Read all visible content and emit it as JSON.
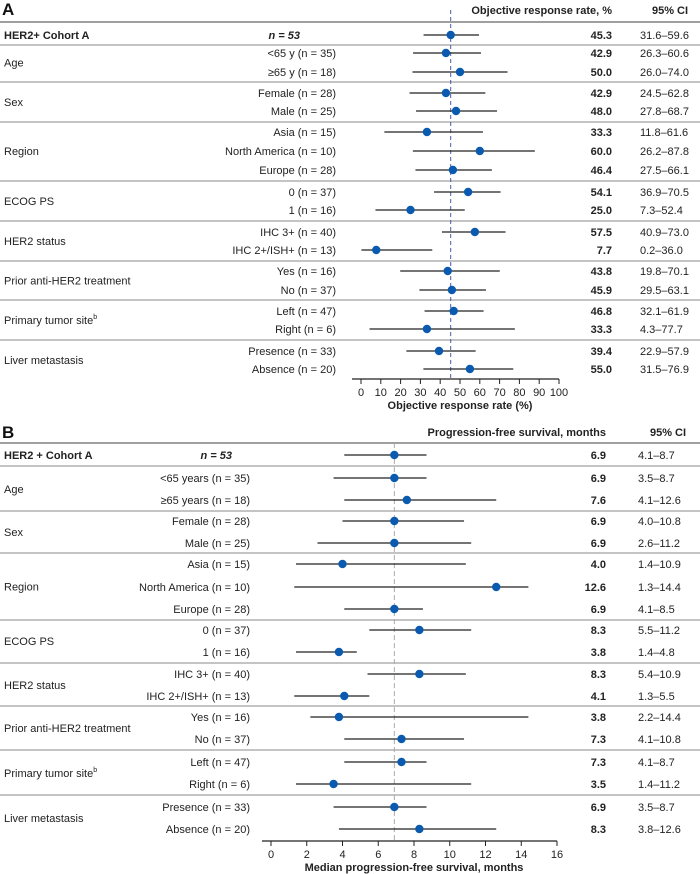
{
  "chart_data": [
    {
      "type": "forest",
      "panel_label": "A",
      "estimate_header": "Objective response rate, %",
      "ci_header": "95% CI",
      "xlabel": "Objective response rate (%)",
      "xlim": [
        0,
        100
      ],
      "xticks": [
        "0",
        "10",
        "20",
        "30",
        "40",
        "50",
        "60",
        "70",
        "80",
        "90",
        "100"
      ],
      "reference_line": 45.3,
      "overall": {
        "label": "HER2+ Cohort A",
        "n_label": "n = 53",
        "value": 45.3,
        "lo": 31.6,
        "hi": 59.6,
        "value_text": "45.3",
        "ci_text": "31.6–59.6"
      },
      "groups": [
        {
          "label": "Age",
          "sup": "",
          "rows": [
            {
              "label": "<65 y (n = 35)",
              "value": 42.9,
              "lo": 26.3,
              "hi": 60.6,
              "value_text": "42.9",
              "ci_text": "26.3–60.6"
            },
            {
              "label": "≥65 y (n = 18)",
              "value": 50.0,
              "lo": 26.0,
              "hi": 74.0,
              "value_text": "50.0",
              "ci_text": "26.0–74.0"
            }
          ]
        },
        {
          "label": "Sex",
          "sup": "",
          "rows": [
            {
              "label": "Female (n = 28)",
              "value": 42.9,
              "lo": 24.5,
              "hi": 62.8,
              "value_text": "42.9",
              "ci_text": "24.5–62.8"
            },
            {
              "label": "Male (n = 25)",
              "value": 48.0,
              "lo": 27.8,
              "hi": 68.7,
              "value_text": "48.0",
              "ci_text": "27.8–68.7"
            }
          ]
        },
        {
          "label": "Region",
          "sup": "",
          "rows": [
            {
              "label": "Asia (n = 15)",
              "value": 33.3,
              "lo": 11.8,
              "hi": 61.6,
              "value_text": "33.3",
              "ci_text": "11.8–61.6"
            },
            {
              "label": "North America (n = 10)",
              "value": 60.0,
              "lo": 26.2,
              "hi": 87.8,
              "value_text": "60.0",
              "ci_text": "26.2–87.8"
            },
            {
              "label": "Europe (n = 28)",
              "value": 46.4,
              "lo": 27.5,
              "hi": 66.1,
              "value_text": "46.4",
              "ci_text": "27.5–66.1"
            }
          ]
        },
        {
          "label": "ECOG PS",
          "sup": "",
          "rows": [
            {
              "label": "0 (n = 37)",
              "value": 54.1,
              "lo": 36.9,
              "hi": 70.5,
              "value_text": "54.1",
              "ci_text": "36.9–70.5"
            },
            {
              "label": "1 (n = 16)",
              "value": 25.0,
              "lo": 7.3,
              "hi": 52.4,
              "value_text": "25.0",
              "ci_text": "7.3–52.4"
            }
          ]
        },
        {
          "label": "HER2 status",
          "sup": "",
          "rows": [
            {
              "label": "IHC 3+ (n = 40)",
              "value": 57.5,
              "lo": 40.9,
              "hi": 73.0,
              "value_text": "57.5",
              "ci_text": "40.9–73.0"
            },
            {
              "label": "IHC 2+/ISH+ (n = 13)",
              "value": 7.7,
              "lo": 0.2,
              "hi": 36.0,
              "value_text": "7.7",
              "ci_text": "0.2–36.0"
            }
          ]
        },
        {
          "label": "Prior anti-HER2 treatment",
          "sup": "",
          "rows": [
            {
              "label": "Yes (n = 16)",
              "value": 43.8,
              "lo": 19.8,
              "hi": 70.1,
              "value_text": "43.8",
              "ci_text": "19.8–70.1"
            },
            {
              "label": "No (n = 37)",
              "value": 45.9,
              "lo": 29.5,
              "hi": 63.1,
              "value_text": "45.9",
              "ci_text": "29.5–63.1"
            }
          ]
        },
        {
          "label": "Primary tumor site",
          "sup": "b",
          "rows": [
            {
              "label": "Left (n = 47)",
              "value": 46.8,
              "lo": 32.1,
              "hi": 61.9,
              "value_text": "46.8",
              "ci_text": "32.1–61.9"
            },
            {
              "label": "Right (n = 6)",
              "value": 33.3,
              "lo": 4.3,
              "hi": 77.7,
              "value_text": "33.3",
              "ci_text": "4.3–77.7"
            }
          ]
        },
        {
          "label": "Liver metastasis",
          "sup": "",
          "rows": [
            {
              "label": "Presence (n = 33)",
              "value": 39.4,
              "lo": 22.9,
              "hi": 57.9,
              "value_text": "39.4",
              "ci_text": "22.9–57.9"
            },
            {
              "label": "Absence (n = 20)",
              "value": 55.0,
              "lo": 31.5,
              "hi": 76.9,
              "value_text": "55.0",
              "ci_text": "31.5–76.9"
            }
          ]
        }
      ]
    },
    {
      "type": "forest",
      "panel_label": "B",
      "estimate_header": "Progression-free survival, months",
      "ci_header": "95% CI",
      "xlabel": "Median progression-free survival, months",
      "xlim": [
        0,
        16
      ],
      "xticks": [
        "0",
        "2",
        "4",
        "6",
        "8",
        "10",
        "12",
        "14",
        "16"
      ],
      "reference_line": 6.9,
      "overall": {
        "label": "HER2 + Cohort A",
        "n_label": "n = 53",
        "value": 6.9,
        "lo": 4.1,
        "hi": 8.7,
        "value_text": "6.9",
        "ci_text": "4.1–8.7"
      },
      "groups": [
        {
          "label": "Age",
          "sup": "",
          "rows": [
            {
              "label": "<65 years (n = 35)",
              "value": 6.9,
              "lo": 3.5,
              "hi": 8.7,
              "value_text": "6.9",
              "ci_text": "3.5–8.7"
            },
            {
              "label": "≥65 years (n = 18)",
              "value": 7.6,
              "lo": 4.1,
              "hi": 12.6,
              "value_text": "7.6",
              "ci_text": "4.1–12.6"
            }
          ]
        },
        {
          "label": "Sex",
          "sup": "",
          "rows": [
            {
              "label": "Female (n = 28)",
              "value": 6.9,
              "lo": 4.0,
              "hi": 10.8,
              "value_text": "6.9",
              "ci_text": "4.0–10.8"
            },
            {
              "label": "Male (n = 25)",
              "value": 6.9,
              "lo": 2.6,
              "hi": 11.2,
              "value_text": "6.9",
              "ci_text": "2.6–11.2"
            }
          ]
        },
        {
          "label": "Region",
          "sup": "",
          "rows": [
            {
              "label": "Asia (n = 15)",
              "value": 4.0,
              "lo": 1.4,
              "hi": 10.9,
              "value_text": "4.0",
              "ci_text": "1.4–10.9"
            },
            {
              "label": "North America (n = 10)",
              "value": 12.6,
              "lo": 1.3,
              "hi": 14.4,
              "value_text": "12.6",
              "ci_text": "1.3–14.4"
            },
            {
              "label": "Europe (n = 28)",
              "value": 6.9,
              "lo": 4.1,
              "hi": 8.5,
              "value_text": "6.9",
              "ci_text": "4.1–8.5"
            }
          ]
        },
        {
          "label": "ECOG PS",
          "sup": "",
          "rows": [
            {
              "label": "0 (n = 37)",
              "value": 8.3,
              "lo": 5.5,
              "hi": 11.2,
              "value_text": "8.3",
              "ci_text": "5.5–11.2"
            },
            {
              "label": "1 (n = 16)",
              "value": 3.8,
              "lo": 1.4,
              "hi": 4.8,
              "value_text": "3.8",
              "ci_text": "1.4–4.8"
            }
          ]
        },
        {
          "label": "HER2 status",
          "sup": "",
          "rows": [
            {
              "label": "IHC 3+ (n = 40)",
              "value": 8.3,
              "lo": 5.4,
              "hi": 10.9,
              "value_text": "8.3",
              "ci_text": "5.4–10.9"
            },
            {
              "label": "IHC 2+/ISH+ (n = 13)",
              "value": 4.1,
              "lo": 1.3,
              "hi": 5.5,
              "value_text": "4.1",
              "ci_text": "1.3–5.5"
            }
          ]
        },
        {
          "label": "Prior anti-HER2 treatment",
          "sup": "",
          "rows": [
            {
              "label": "Yes (n = 16)",
              "value": 3.8,
              "lo": 2.2,
              "hi": 14.4,
              "value_text": "3.8",
              "ci_text": "2.2–14.4"
            },
            {
              "label": "No (n = 37)",
              "value": 7.3,
              "lo": 4.1,
              "hi": 10.8,
              "value_text": "7.3",
              "ci_text": "4.1–10.8"
            }
          ]
        },
        {
          "label": "Primary tumor site",
          "sup": "b",
          "rows": [
            {
              "label": "Left (n = 47)",
              "value": 7.3,
              "lo": 4.1,
              "hi": 8.7,
              "value_text": "7.3",
              "ci_text": "4.1–8.7"
            },
            {
              "label": "Right (n = 6)",
              "value": 3.5,
              "lo": 1.4,
              "hi": 11.2,
              "value_text": "3.5",
              "ci_text": "1.4–11.2"
            }
          ]
        },
        {
          "label": "Liver metastasis",
          "sup": "",
          "rows": [
            {
              "label": "Presence (n = 33)",
              "value": 6.9,
              "lo": 3.5,
              "hi": 8.7,
              "value_text": "6.9",
              "ci_text": "3.5–8.7"
            },
            {
              "label": "Absence (n = 20)",
              "value": 8.3,
              "lo": 3.8,
              "hi": 12.6,
              "value_text": "8.3",
              "ci_text": "3.8–12.6"
            }
          ]
        }
      ]
    }
  ],
  "colors": {
    "point": "#0a5bb0",
    "ref_line_a": "#4a5aa8",
    "ref_line_b": "#aaaaaa",
    "ci_line": "#222222",
    "separator": "#888888"
  }
}
